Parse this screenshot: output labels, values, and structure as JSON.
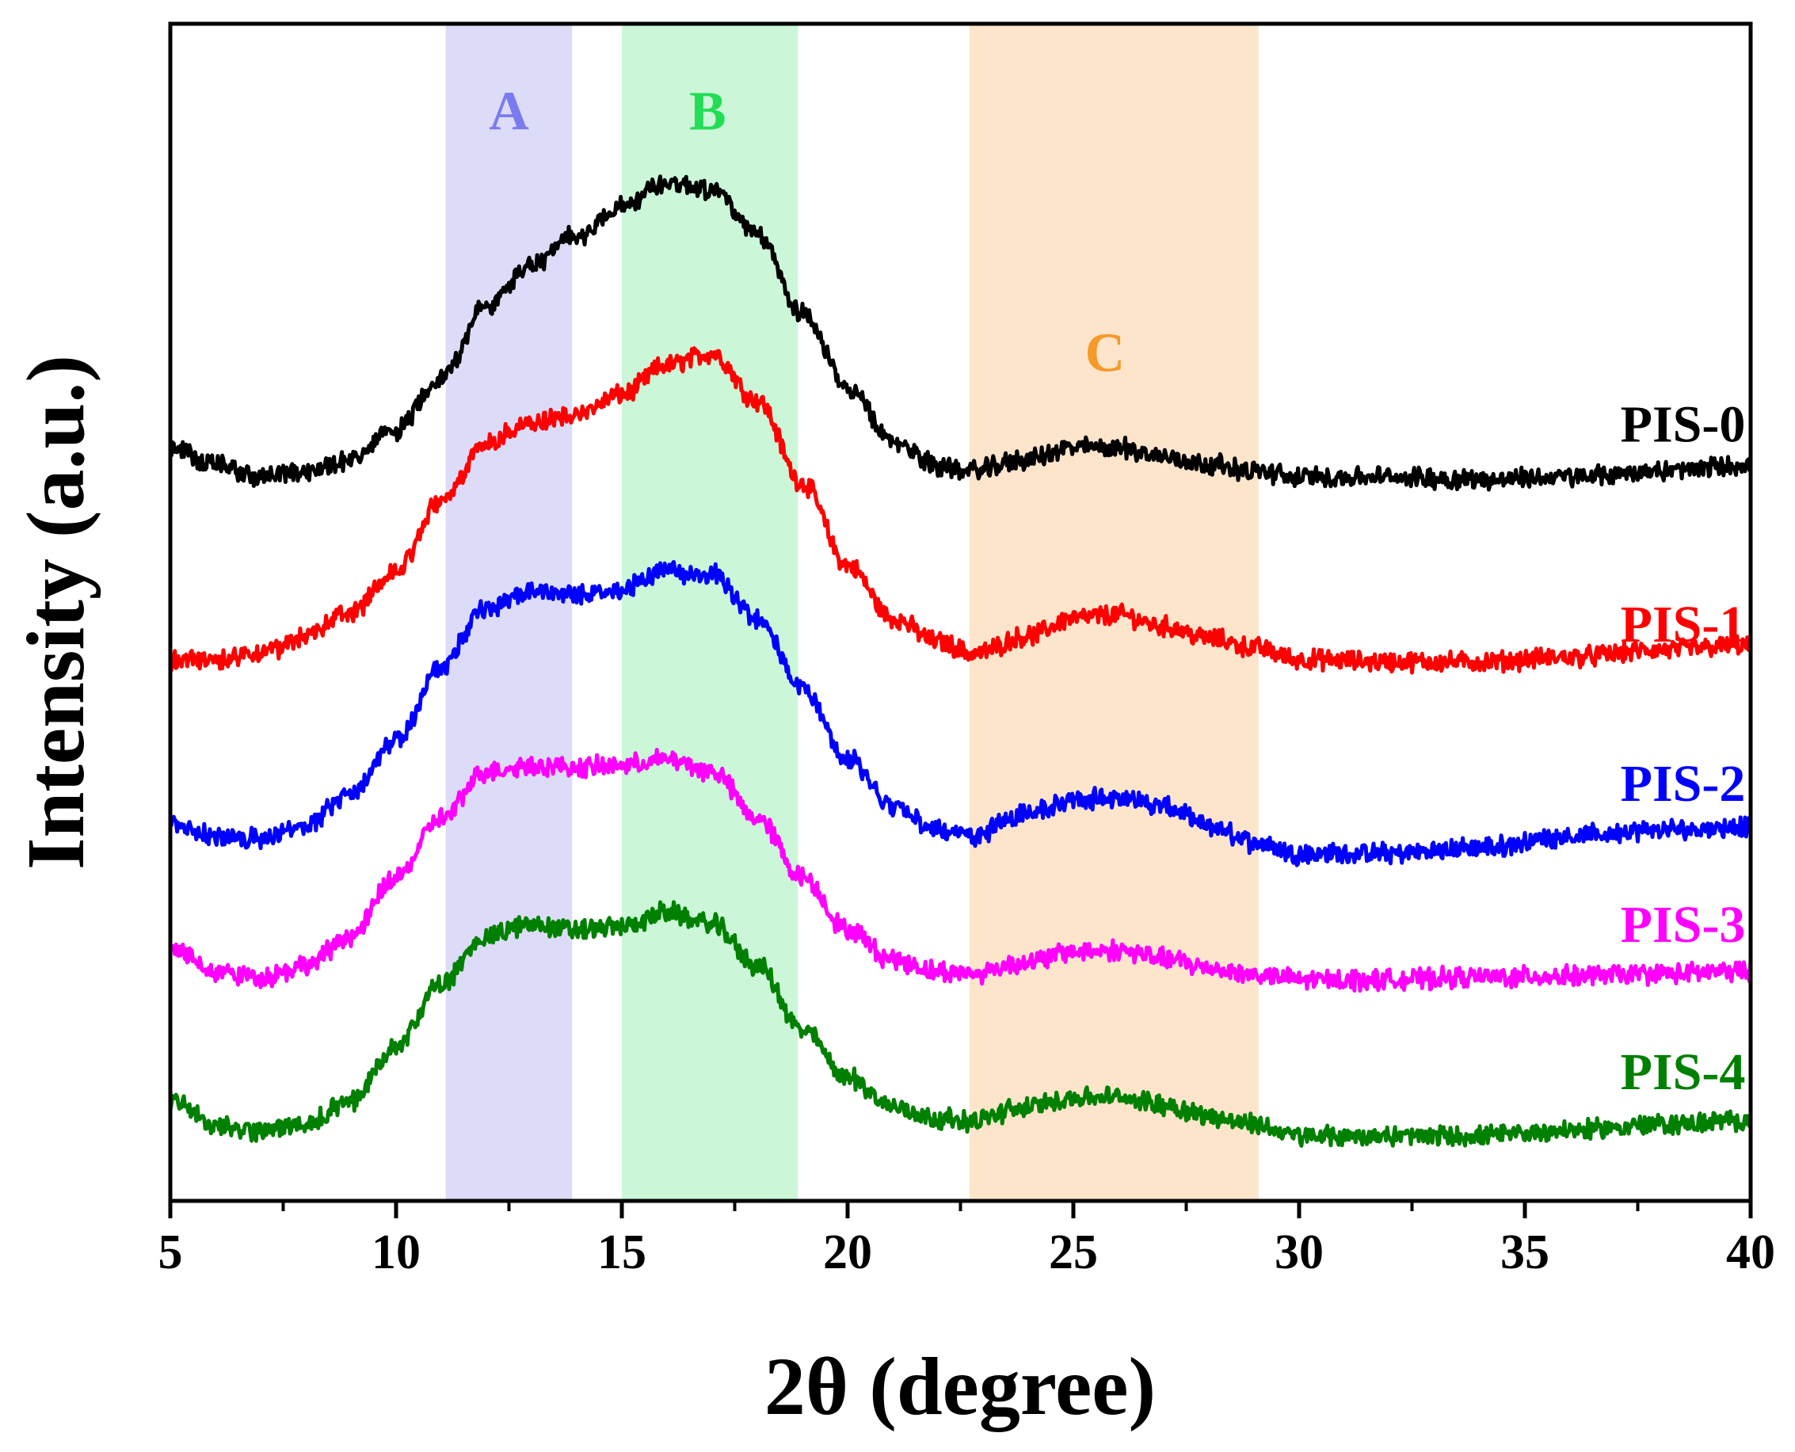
{
  "chart_data": {
    "type": "line",
    "xlabel": "2θ (degree)",
    "ylabel": "Intensity (a.u.)",
    "xlim": [
      5,
      40
    ],
    "ylim": [
      0,
      100
    ],
    "xticks": [
      5,
      10,
      15,
      20,
      25,
      30,
      35,
      40
    ],
    "xtick_labels": [
      "5",
      "10",
      "15",
      "20",
      "25",
      "30",
      "35",
      "40"
    ],
    "yticks_shown": false,
    "bands": [
      {
        "label": "A",
        "x_start": 11.1,
        "x_end": 13.9,
        "fill": "#dcdcf8",
        "text_color": "#7b7bf0",
        "label_x": 12.5,
        "label_y": 91
      },
      {
        "label": "B",
        "x_start": 15.0,
        "x_end": 18.9,
        "fill": "#cbf7d8",
        "text_color": "#22dd55",
        "label_x": 16.9,
        "label_y": 91
      },
      {
        "label": "C",
        "x_start": 22.7,
        "x_end": 29.1,
        "fill": "#fde5cc",
        "text_color": "#f59a2a",
        "label_x": 25.7,
        "label_y": 70.5
      }
    ],
    "series": [
      {
        "name": "PIS-0",
        "color": "#000000",
        "label_x": 38.5,
        "label_y": 64.5,
        "x": [
          5,
          6,
          7,
          8,
          9,
          10,
          11,
          12,
          13,
          14,
          15,
          16,
          17,
          18,
          19,
          20,
          21,
          22,
          22.7,
          24,
          25,
          26,
          27,
          28,
          29,
          30,
          32,
          34,
          36,
          38,
          40
        ],
        "y": [
          64,
          62.5,
          61.5,
          62,
          63,
          65.5,
          70,
          76,
          79.5,
          82,
          84.5,
          86.5,
          86,
          82,
          75.5,
          69,
          64.5,
          62.5,
          62,
          63,
          64,
          64,
          63.2,
          62.6,
          62,
          61.5,
          61.5,
          61.3,
          61.5,
          62,
          62.5
        ]
      },
      {
        "name": "PIS-1",
        "color": "#ff0000",
        "label_x": 38.5,
        "label_y": 47.5,
        "x": [
          5,
          6,
          7,
          8,
          9,
          10,
          11,
          12,
          13,
          14,
          15,
          16,
          17,
          18,
          19,
          20,
          21,
          22,
          22.8,
          24,
          25,
          26,
          27,
          28,
          29,
          30,
          32,
          34,
          36,
          38,
          40
        ],
        "y": [
          46,
          46,
          46.5,
          48,
          50,
          53.5,
          59.5,
          64.5,
          66,
          66.8,
          68.5,
          71,
          72,
          68,
          61,
          54,
          49.5,
          47.5,
          46.5,
          48,
          49.5,
          49.8,
          48.8,
          47.8,
          47,
          46,
          45.8,
          45.8,
          46.2,
          46.8,
          47.2
        ]
      },
      {
        "name": "PIS-2",
        "color": "#0000ff",
        "label_x": 38.5,
        "label_y": 34,
        "x": [
          5,
          6,
          7,
          8,
          9,
          10,
          11,
          12,
          13,
          14,
          15,
          16,
          17,
          18,
          19,
          20,
          21,
          22,
          22.7,
          24,
          25,
          26,
          27,
          28,
          29,
          30,
          32,
          34,
          36,
          38,
          40
        ],
        "y": [
          32,
          31,
          30.8,
          32,
          34.5,
          39,
          45.5,
          50.5,
          51.8,
          51.5,
          52,
          53.5,
          53.2,
          49.5,
          43.5,
          37.5,
          33.5,
          31.5,
          31,
          33,
          34,
          34.3,
          33.5,
          31.8,
          30.5,
          29.5,
          29.5,
          30,
          31,
          31.5,
          31.8
        ]
      },
      {
        "name": "PIS-3",
        "color": "#ff00ff",
        "label_x": 38.5,
        "label_y": 22,
        "x": [
          5,
          6,
          7,
          8,
          9,
          10,
          11,
          12,
          13,
          14,
          15,
          16,
          17,
          18,
          19,
          20,
          21,
          22,
          22.7,
          24,
          25,
          26,
          27,
          28,
          29,
          30,
          32,
          34,
          36,
          38,
          40
        ],
        "y": [
          21.5,
          19.5,
          19,
          20,
          22.5,
          27.5,
          32.5,
          36.5,
          37,
          36.8,
          37,
          37.5,
          36.5,
          32.5,
          27.5,
          23,
          20.5,
          19.5,
          19.3,
          20.3,
          21.2,
          21.3,
          20.6,
          19.8,
          19.2,
          18.8,
          18.8,
          19,
          19.1,
          19.3,
          19.5
        ]
      },
      {
        "name": "PIS-4",
        "color": "#008000",
        "label_x": 38.5,
        "label_y": 9.5,
        "x": [
          5,
          6,
          7,
          8,
          9,
          10,
          11,
          12,
          13,
          14,
          15,
          16,
          17,
          18,
          19,
          20,
          21,
          22,
          22.7,
          24,
          25,
          26,
          27,
          28,
          29,
          30,
          32,
          34,
          36,
          38,
          40
        ],
        "y": [
          8.5,
          6.5,
          6,
          6.5,
          8.5,
          13,
          18.5,
          22.5,
          23.5,
          23,
          23.3,
          24.5,
          23.5,
          20,
          14.5,
          10.5,
          8,
          7,
          6.8,
          8,
          8.8,
          8.8,
          8.2,
          7.2,
          6.5,
          5.5,
          5.5,
          5.5,
          6,
          6.5,
          6.8
        ]
      }
    ]
  }
}
